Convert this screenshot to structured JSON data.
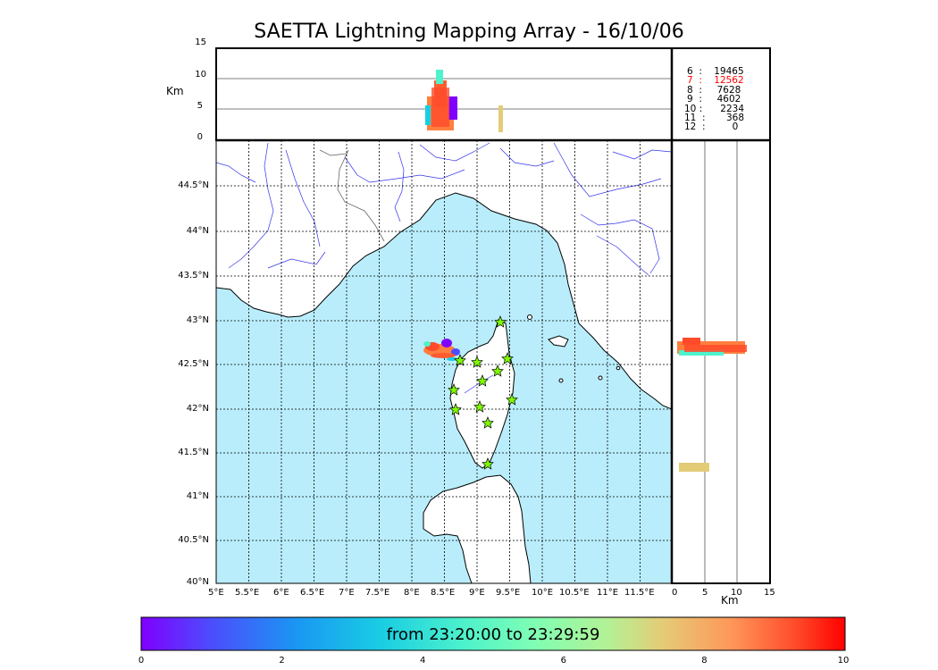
{
  "title": "SAETTA Lightning Mapping Array - 16/10/06",
  "altitude_panel": {
    "unit_label": "Km",
    "y_ticks": [
      "15",
      "10",
      "5",
      "0"
    ]
  },
  "side_panel": {
    "unit_label": "Km",
    "x_ticks": [
      "0",
      "5",
      "10",
      "15"
    ]
  },
  "map": {
    "lat_ticks": [
      "44.5°N",
      "44°N",
      "43.5°N",
      "43°N",
      "42.5°N",
      "42°N",
      "41.5°N",
      "41°N",
      "40.5°N",
      "40°N"
    ],
    "lon_ticks": [
      "5°E",
      "5.5°E",
      "6°E",
      "6.5°E",
      "7°E",
      "7.5°E",
      "8°E",
      "8.5°E",
      "9°E",
      "9.5°E",
      "10°E",
      "10.5°E",
      "11°E",
      "11.5°E"
    ],
    "sea_color": "#b9edfb",
    "river_color": "#3333ee",
    "station_color": "#7cfc00",
    "station_count": 12
  },
  "stats": {
    "rows": [
      {
        "n": "6",
        "count": "19465",
        "highlight": false
      },
      {
        "n": "7",
        "count": "12562",
        "highlight": true
      },
      {
        "n": "8",
        "count": "7628",
        "highlight": false
      },
      {
        "n": "9",
        "count": "4602",
        "highlight": false
      },
      {
        "n": "10",
        "count": "2234",
        "highlight": false
      },
      {
        "n": "11",
        "count": "368",
        "highlight": false
      },
      {
        "n": "12",
        "count": "0",
        "highlight": false
      }
    ],
    "highlight_color": "#ff0000"
  },
  "colorbar": {
    "label": "from 23:20:00 to 23:29:59",
    "ticks": [
      "0",
      "2",
      "4",
      "6",
      "8",
      "10"
    ]
  }
}
